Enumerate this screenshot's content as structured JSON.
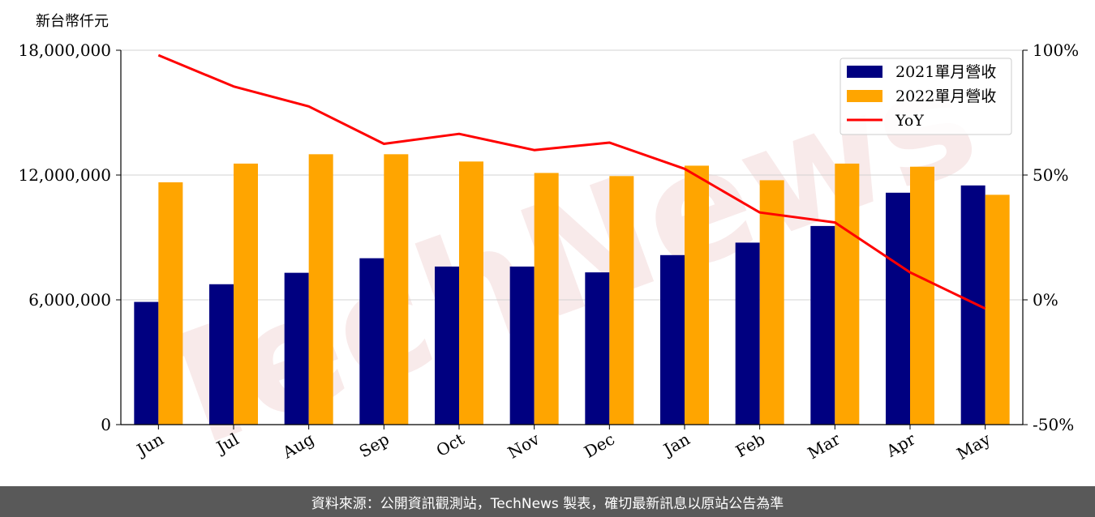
{
  "footer": {
    "source_text": "資料來源：公開資訊觀測站，TechNews 製表，確切最新訊息以原站公告為準"
  },
  "watermark": {
    "text": "TechNews"
  },
  "chart_data": {
    "type": "bar",
    "title": "",
    "ylabel": "新台幣仟元",
    "categories": [
      "Jun",
      "Jul",
      "Aug",
      "Sep",
      "Oct",
      "Nov",
      "Dec",
      "Jan",
      "Feb",
      "Mar",
      "Apr",
      "May"
    ],
    "ylim": [
      0,
      18000000
    ],
    "y_ticks": [
      0,
      6000000,
      12000000,
      18000000
    ],
    "y_tick_labels": [
      "0",
      "6,000,000",
      "12,000,000",
      "18,000,000"
    ],
    "y2lim": [
      -50,
      100
    ],
    "y2_ticks": [
      -50,
      0,
      50,
      100
    ],
    "y2_tick_labels": [
      "-50%",
      "0%",
      "50%",
      "100%"
    ],
    "grid": "horizontal",
    "legend_position": "top-right",
    "series": [
      {
        "name": "2021單月營收",
        "kind": "bar",
        "color": "#000080",
        "values": [
          5900000,
          6750000,
          7300000,
          8000000,
          7600000,
          7600000,
          7320000,
          8150000,
          8750000,
          9550000,
          11150000,
          11500000
        ]
      },
      {
        "name": "2022單月營收",
        "kind": "bar",
        "color": "#FFA500",
        "values": [
          11650000,
          12550000,
          13000000,
          13000000,
          12650000,
          12100000,
          11950000,
          12450000,
          11750000,
          12550000,
          12400000,
          11050000
        ]
      },
      {
        "name": "YoY",
        "kind": "line",
        "axis": "right",
        "color": "#FF0000",
        "values": [
          98,
          85.5,
          77.5,
          62.5,
          66.5,
          60,
          63,
          52.5,
          35,
          31,
          11,
          -3.5
        ]
      }
    ]
  }
}
